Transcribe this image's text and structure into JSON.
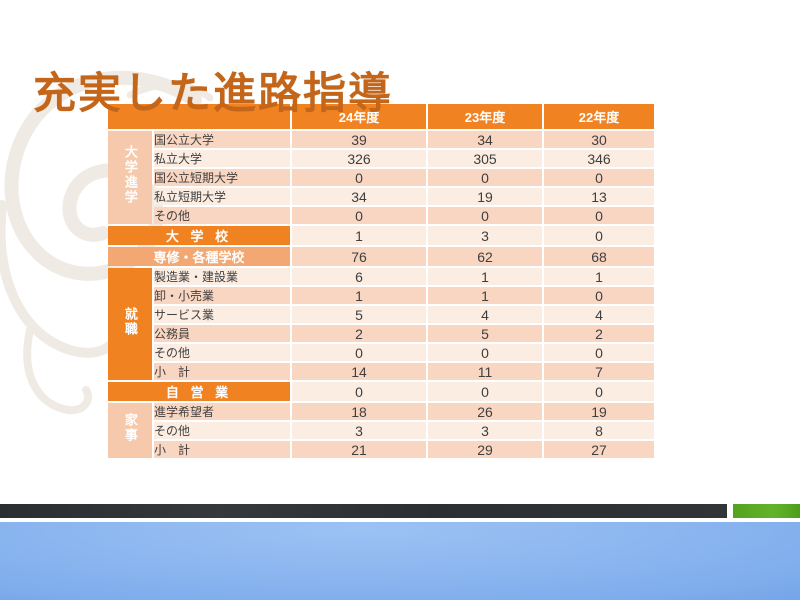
{
  "slide": {
    "title": "充実した進路指導"
  },
  "table": {
    "col_headers": [
      "24年度",
      "23年度",
      "22年度"
    ],
    "groups": [
      {
        "label": "大学進学",
        "style": "light",
        "start": 0,
        "span": 5
      },
      {
        "label": "就職",
        "style": "orange",
        "start": 7,
        "span": 6
      },
      {
        "label": "家事",
        "style": "light",
        "start": 14,
        "span": 3
      }
    ],
    "rows": [
      {
        "type": "data",
        "group": 0,
        "label": "国公立大学",
        "values": [
          "39",
          "34",
          "30"
        ]
      },
      {
        "type": "data",
        "group": 0,
        "label": "私立大学",
        "values": [
          "326",
          "305",
          "346"
        ]
      },
      {
        "type": "data",
        "group": 0,
        "label": "国公立短期大学",
        "values": [
          "0",
          "0",
          "0"
        ]
      },
      {
        "type": "data",
        "group": 0,
        "label": "私立短期大学",
        "values": [
          "34",
          "19",
          "13"
        ]
      },
      {
        "type": "data",
        "group": 0,
        "label": "その他",
        "values": [
          "0",
          "0",
          "0"
        ]
      },
      {
        "type": "banner",
        "label": "大 学 校",
        "values": [
          "1",
          "3",
          "0"
        ]
      },
      {
        "type": "subbanner",
        "label": "専修・各種学校",
        "values": [
          "76",
          "62",
          "68"
        ]
      },
      {
        "type": "data",
        "group": 1,
        "label": "製造業・建設業",
        "values": [
          "6",
          "1",
          "1"
        ]
      },
      {
        "type": "data",
        "group": 1,
        "label": "卸・小売業",
        "values": [
          "1",
          "1",
          "0"
        ]
      },
      {
        "type": "data",
        "group": 1,
        "label": "サービス業",
        "values": [
          "5",
          "4",
          "4"
        ]
      },
      {
        "type": "data",
        "group": 1,
        "label": "公務員",
        "values": [
          "2",
          "5",
          "2"
        ]
      },
      {
        "type": "data",
        "group": 1,
        "label": "その他",
        "values": [
          "0",
          "0",
          "0"
        ]
      },
      {
        "type": "data",
        "group": 1,
        "label": "小　計",
        "values": [
          "14",
          "11",
          "7"
        ]
      },
      {
        "type": "banner",
        "label": "自 営 業",
        "values": [
          "0",
          "0",
          "0"
        ]
      },
      {
        "type": "data",
        "group": 2,
        "label": "進学希望者",
        "values": [
          "18",
          "26",
          "19"
        ]
      },
      {
        "type": "data",
        "group": 2,
        "label": "その他",
        "values": [
          "3",
          "3",
          "8"
        ]
      },
      {
        "type": "data",
        "group": 2,
        "label": "小　計",
        "values": [
          "21",
          "29",
          "27"
        ]
      }
    ]
  },
  "colors": {
    "title": "#c4661a",
    "header_orange": "#f08222",
    "sub_banner_orange": "#f3a873",
    "stripe_dark": "#f9d6c2",
    "stripe_light": "#fcede2",
    "group_light": "#f6c9ac",
    "footer_dark_bar": "#2f3234",
    "footer_green_bar": "#57a41e",
    "footer_blue": "#7fadec"
  }
}
